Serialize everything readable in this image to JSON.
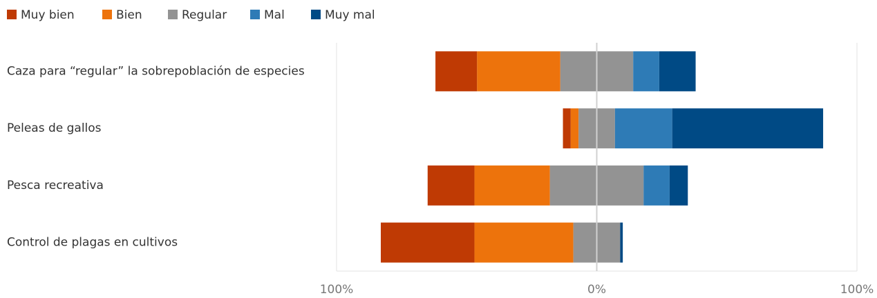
{
  "chart_data": {
    "type": "diverging_bar",
    "categories": [
      "Caza para “regular” la sobrepoblación de especies",
      "Peleas de gallos",
      "Pesca recreativa",
      "Control de plagas en cultivos"
    ],
    "series": [
      {
        "name": "Muy bien",
        "color": "#bf3a04",
        "values": [
          16,
          3,
          18,
          36
        ]
      },
      {
        "name": "Bien",
        "color": "#ed730c",
        "values": [
          32,
          3,
          29,
          38
        ]
      },
      {
        "name": "Regular",
        "color": "#939393",
        "values": [
          28,
          14,
          36,
          18
        ]
      },
      {
        "name": "Mal",
        "color": "#2e7bb6",
        "values": [
          10,
          22,
          10,
          0
        ]
      },
      {
        "name": "Muy mal",
        "color": "#004a85",
        "values": [
          14,
          58,
          7,
          1
        ]
      }
    ],
    "xlim": [
      -100,
      100
    ],
    "xticks": [
      {
        "value": -100,
        "label": "100%"
      },
      {
        "value": 0,
        "label": "0%"
      },
      {
        "value": 100,
        "label": "100%"
      }
    ],
    "grid": true
  }
}
